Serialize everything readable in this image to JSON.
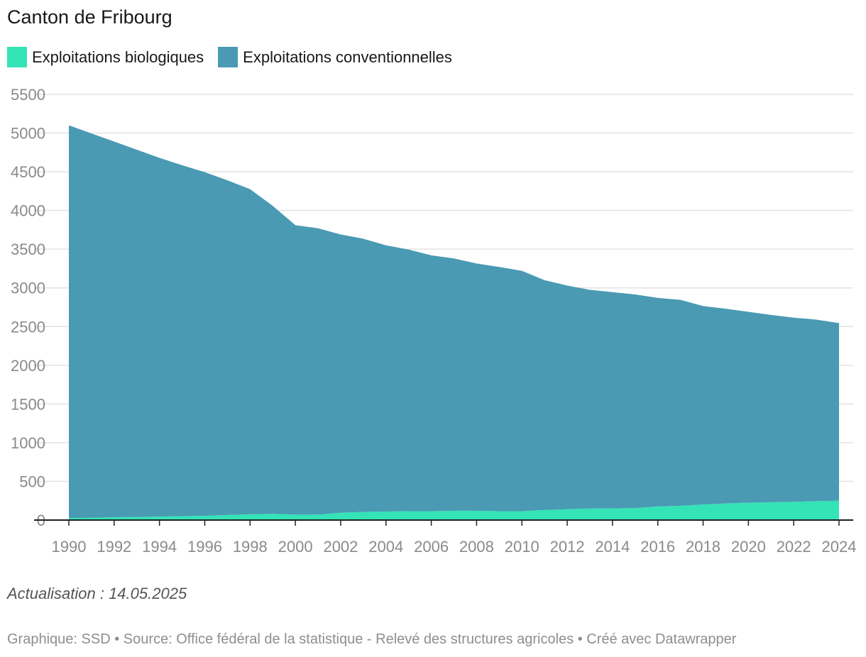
{
  "header": {
    "title": "Canton de Fribourg"
  },
  "notes": "Actualisation : 14.05.2025",
  "footer": "Graphique: SSD • Source: Office fédéral de la statistique - Relevé des structures agricoles • Créé avec Datawrapper",
  "colors": {
    "bio": "#34e3b6",
    "conv": "#4a9ab3",
    "grid": "#e2e2e2",
    "axis": "#222222",
    "tick_text": "#8a8a8a"
  },
  "chart_data": {
    "type": "area",
    "stacked": true,
    "title": "Canton de Fribourg",
    "xlabel": "",
    "ylabel": "",
    "ylim": [
      0,
      5500
    ],
    "yticks": [
      0,
      500,
      1000,
      1500,
      2000,
      2500,
      3000,
      3500,
      4000,
      4500,
      5000,
      5500
    ],
    "xticks": [
      1990,
      1992,
      1994,
      1996,
      1998,
      2000,
      2002,
      2004,
      2006,
      2008,
      2010,
      2012,
      2014,
      2016,
      2018,
      2020,
      2022,
      2024
    ],
    "grid": true,
    "legend": "top-left",
    "x": [
      1990,
      1991,
      1992,
      1993,
      1994,
      1995,
      1996,
      1997,
      1998,
      1999,
      2000,
      2001,
      2002,
      2003,
      2004,
      2005,
      2006,
      2007,
      2008,
      2009,
      2010,
      2011,
      2012,
      2013,
      2014,
      2015,
      2016,
      2017,
      2018,
      2019,
      2020,
      2021,
      2022,
      2023,
      2024
    ],
    "series": [
      {
        "name": "Exploitations biologiques",
        "color": "#34e3b6",
        "values": [
          25,
          30,
          35,
          40,
          45,
          50,
          55,
          65,
          75,
          80,
          70,
          70,
          95,
          105,
          110,
          115,
          115,
          120,
          120,
          115,
          115,
          130,
          140,
          150,
          150,
          155,
          175,
          185,
          200,
          215,
          225,
          230,
          235,
          245,
          250
        ]
      },
      {
        "name": "Exploitations conventionnelles",
        "color": "#4a9ab3",
        "values": [
          5075,
          4965,
          4855,
          4745,
          4635,
          4535,
          4440,
          4325,
          4200,
          3980,
          3740,
          3700,
          3595,
          3530,
          3440,
          3380,
          3305,
          3260,
          3195,
          3155,
          3105,
          2970,
          2890,
          2825,
          2795,
          2760,
          2695,
          2660,
          2565,
          2515,
          2465,
          2420,
          2380,
          2345,
          2295
        ]
      }
    ]
  }
}
